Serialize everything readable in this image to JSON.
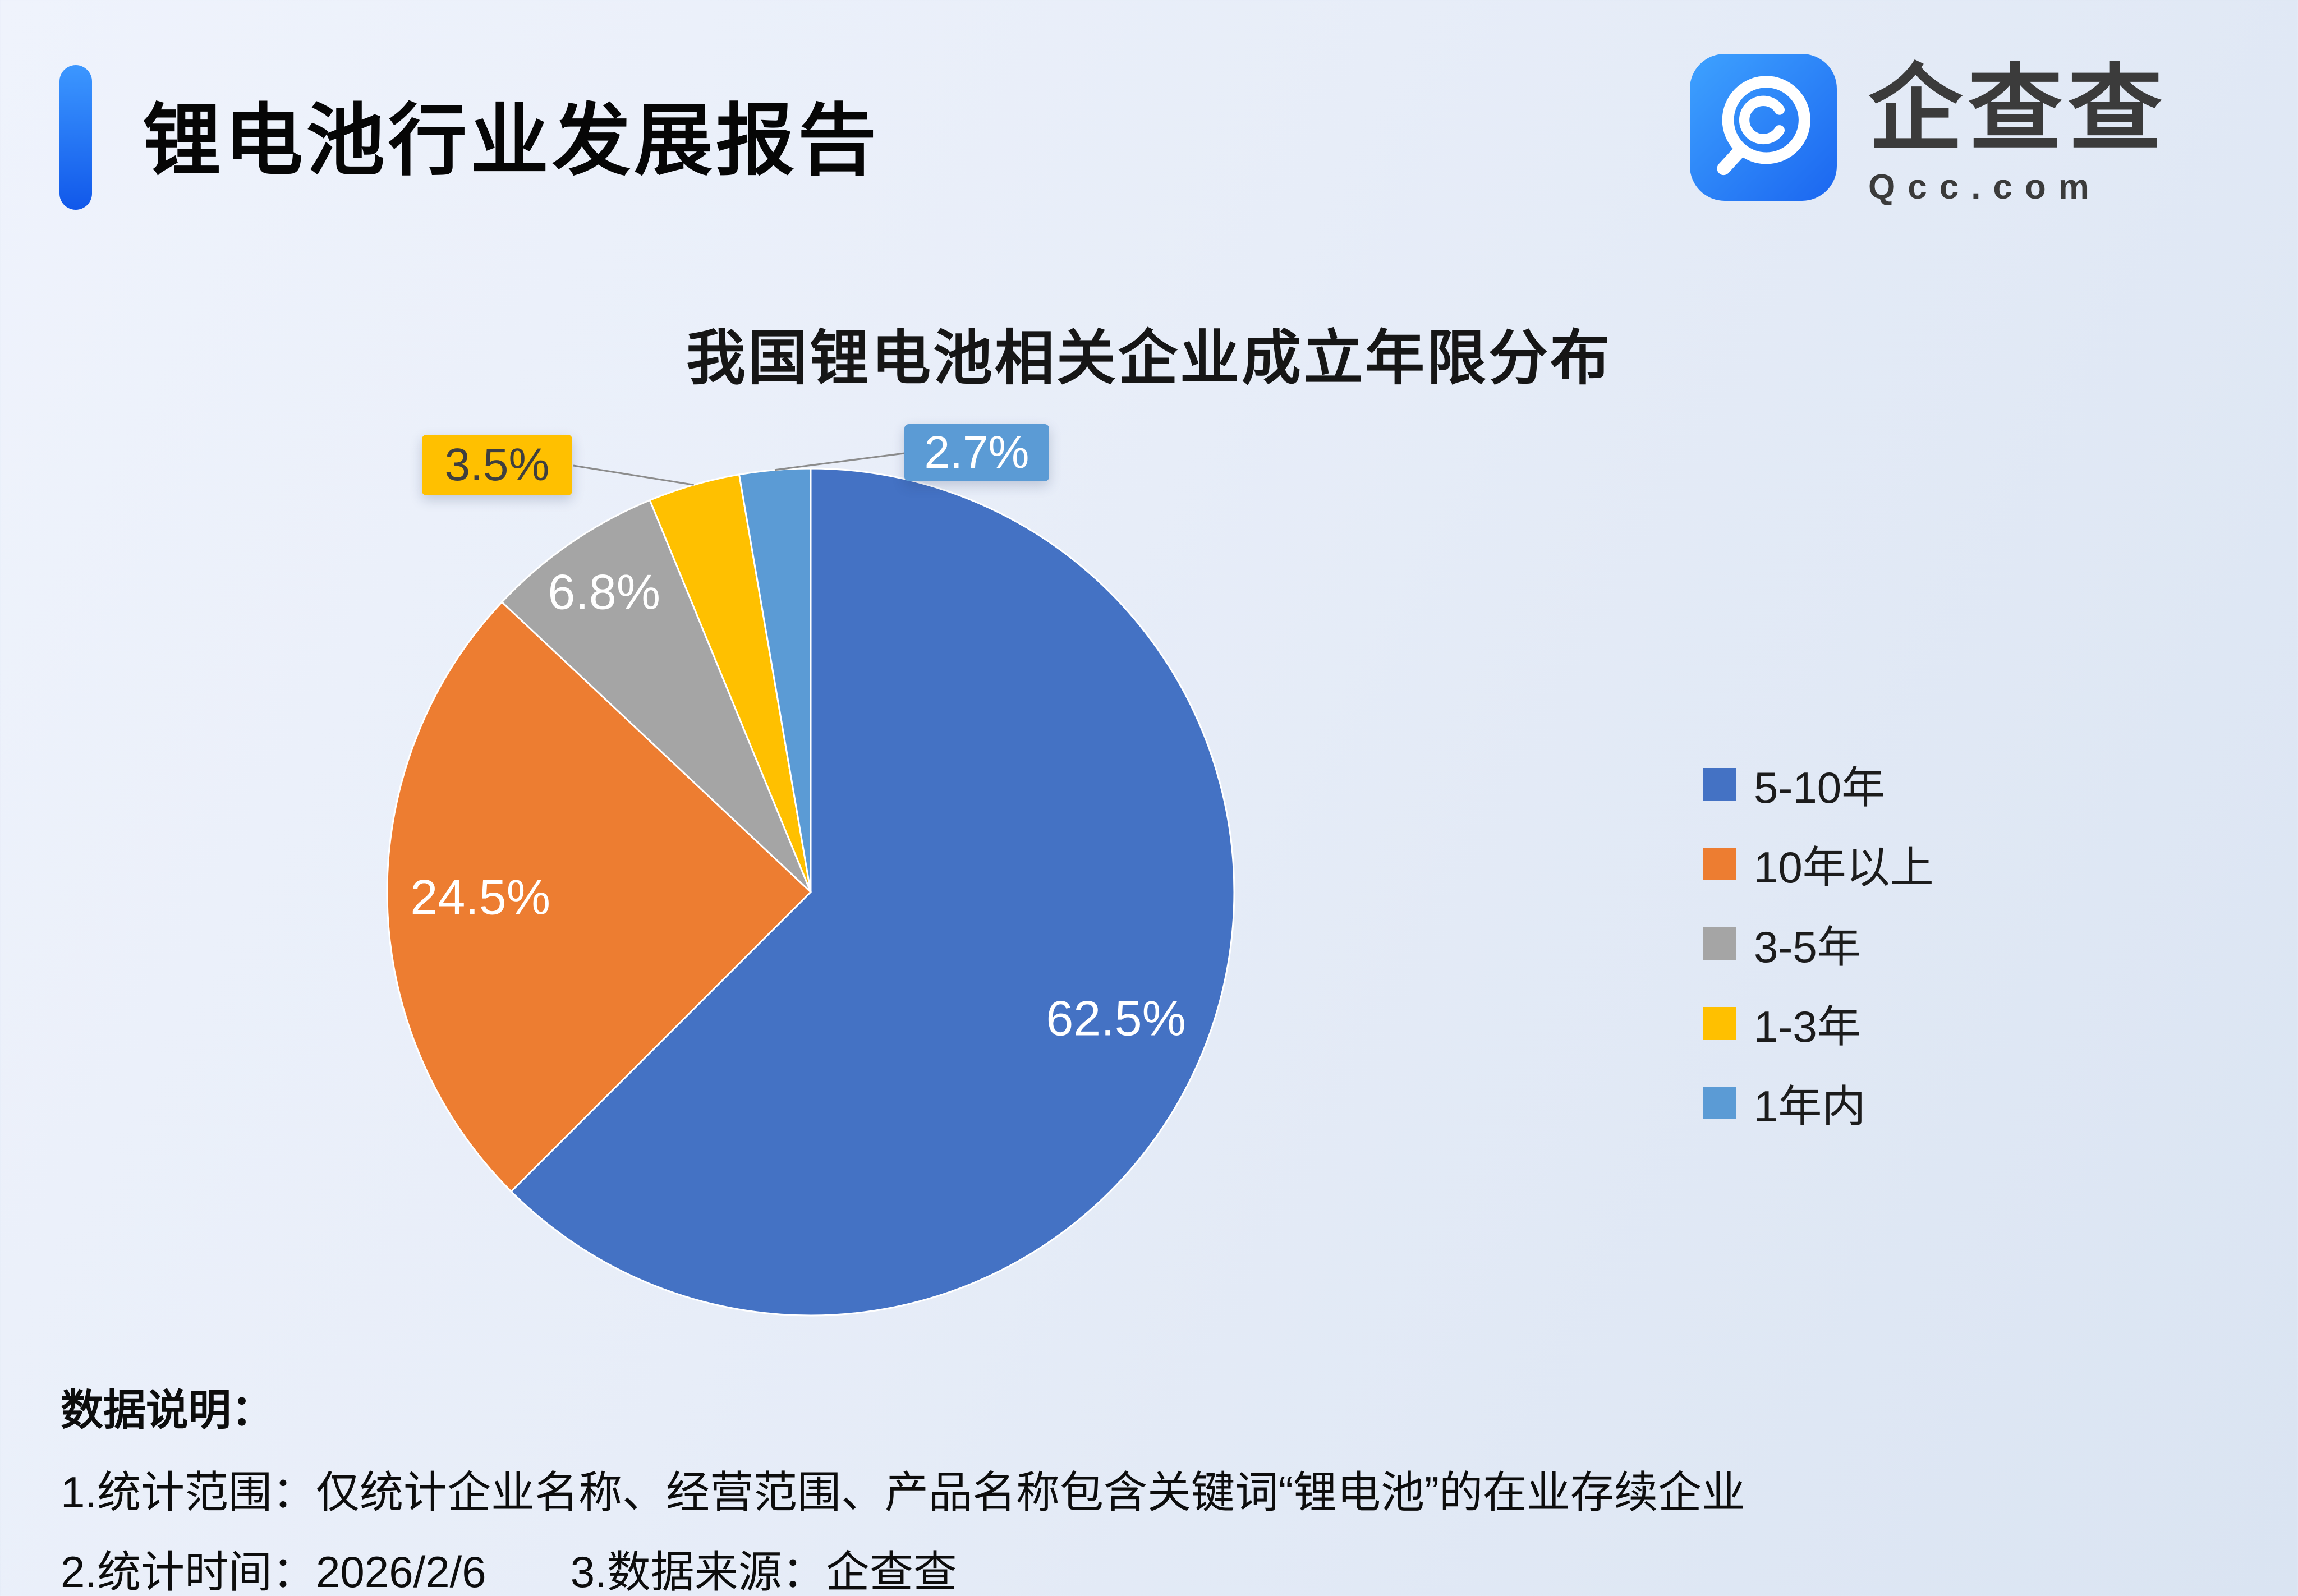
{
  "header": {
    "title": "锂电池行业发展报告",
    "logo": {
      "brand": "企查查",
      "domain": "Qcc.com"
    }
  },
  "chart_data": {
    "type": "pie",
    "title": "我国锂电池相关企业成立年限分布",
    "categories": [
      "5-10年",
      "10年以上",
      "3-5年",
      "1-3年",
      "1年内"
    ],
    "values": [
      62.5,
      24.5,
      6.8,
      3.5,
      2.7
    ],
    "labels": [
      "62.5%",
      "24.5%",
      "6.8%",
      "3.5%",
      "2.7%"
    ],
    "colors": [
      "#4472C4",
      "#ED7D31",
      "#A5A5A5",
      "#FFC000",
      "#5B9BD5"
    ],
    "legend_position": "right",
    "start_angle_deg": 0,
    "direction": "clockwise"
  },
  "footnotes": {
    "heading": "数据说明：",
    "scope": "1.统计范围：仅统计企业名称、经营范围、产品名称包含关键词“锂电池”的在业存续企业",
    "time": "2.统计时间：2026/2/6",
    "source": "3.数据来源：企查查"
  }
}
